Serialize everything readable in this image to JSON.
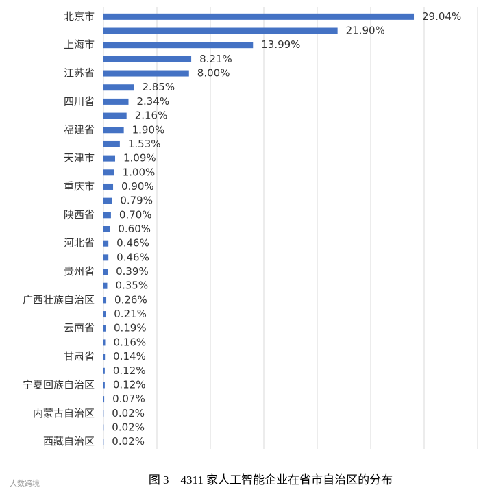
{
  "chart_data": {
    "type": "bar",
    "orientation": "horizontal",
    "title": "图 3　4311 家人工智能企业在省市自治区的分布",
    "watermark": "大数跨境",
    "categories": [
      "北京市",
      null,
      "上海市",
      null,
      "江苏省",
      null,
      "四川省",
      null,
      "福建省",
      null,
      "天津市",
      null,
      "重庆市",
      null,
      "陕西省",
      null,
      "河北省",
      null,
      "贵州省",
      null,
      "广西壮族自治区",
      null,
      "云南省",
      null,
      "甘肃省",
      null,
      "宁夏回族自治区",
      null,
      "内蒙古自治区",
      null,
      "西藏自治区"
    ],
    "values": [
      29.04,
      21.9,
      13.99,
      8.21,
      8.0,
      2.85,
      2.34,
      2.16,
      1.9,
      1.53,
      1.09,
      1.0,
      0.9,
      0.79,
      0.7,
      0.6,
      0.46,
      0.46,
      0.39,
      0.35,
      0.26,
      0.21,
      0.19,
      0.16,
      0.14,
      0.12,
      0.12,
      0.07,
      0.02,
      0.02,
      0.02
    ],
    "value_labels": [
      "29.04%",
      "21.90%",
      "13.99%",
      "8.21%",
      "8.00%",
      "2.85%",
      "2.34%",
      "2.16%",
      "1.90%",
      "1.53%",
      "1.09%",
      "1.00%",
      "0.90%",
      "0.79%",
      "0.70%",
      "0.60%",
      "0.46%",
      "0.46%",
      "0.39%",
      "0.35%",
      "0.26%",
      "0.21%",
      "0.19%",
      "0.16%",
      "0.14%",
      "0.12%",
      "0.12%",
      "0.07%",
      "0.02%",
      "0.02%",
      "0.02%"
    ],
    "color": "#4472c4",
    "xlim": [
      0,
      35
    ],
    "xticks": [
      0,
      5,
      10,
      15,
      20,
      25,
      30,
      35
    ],
    "grid": true
  }
}
